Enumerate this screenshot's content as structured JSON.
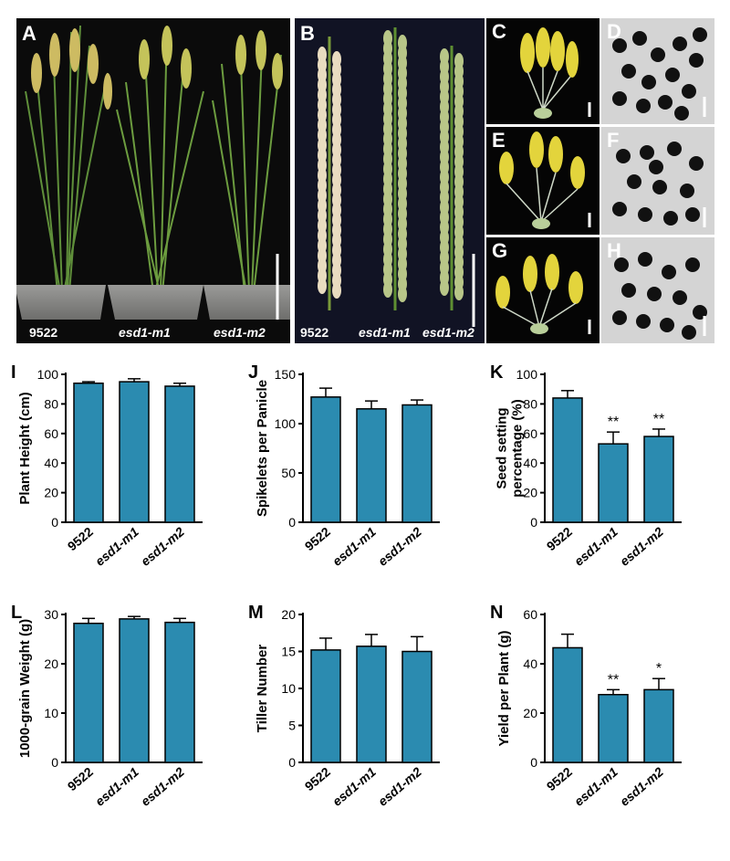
{
  "photo_panels": {
    "A": {
      "label": "A",
      "captions": [
        "9522",
        "esd1-m1",
        "esd1-m2"
      ]
    },
    "B": {
      "label": "B",
      "captions": [
        "9522",
        "esd1-m1",
        "esd1-m2"
      ]
    },
    "C": {
      "label": "C"
    },
    "D": {
      "label": "D"
    },
    "E": {
      "label": "E"
    },
    "F": {
      "label": "F"
    },
    "G": {
      "label": "G"
    },
    "H": {
      "label": "H"
    }
  },
  "colors": {
    "bar": "#2b8bb0",
    "photo_bg": "#0b0b0b",
    "pollen_bg": "#d4d4d4",
    "anther": "#e3d43c"
  },
  "chart_data": [
    {
      "panel": "I",
      "type": "bar",
      "ylabel": "Plant Height (cm)",
      "categories": [
        "9522",
        "esd1-m1",
        "esd1-m2"
      ],
      "values": [
        94,
        95,
        92
      ],
      "errors": [
        1,
        2,
        2
      ],
      "ylim": [
        0,
        100
      ],
      "yticks": [
        0,
        20,
        40,
        60,
        80,
        100
      ],
      "annotations": [
        "",
        "",
        ""
      ]
    },
    {
      "panel": "J",
      "type": "bar",
      "ylabel": "Spikelets per Panicle",
      "categories": [
        "9522",
        "esd1-m1",
        "esd1-m2"
      ],
      "values": [
        127,
        115,
        119
      ],
      "errors": [
        9,
        8,
        5
      ],
      "ylim": [
        0,
        150
      ],
      "yticks": [
        0,
        50,
        100,
        150
      ],
      "annotations": [
        "",
        "",
        ""
      ]
    },
    {
      "panel": "K",
      "type": "bar",
      "ylabel": "Seed setting percentage (%)",
      "ylabel_lines": [
        "Seed setting",
        "percentage (%)"
      ],
      "categories": [
        "9522",
        "esd1-m1",
        "esd1-m2"
      ],
      "values": [
        84,
        53,
        58
      ],
      "errors": [
        5,
        8,
        5
      ],
      "ylim": [
        0,
        100
      ],
      "yticks": [
        0,
        20,
        40,
        60,
        80,
        100
      ],
      "annotations": [
        "",
        "**",
        "**"
      ]
    },
    {
      "panel": "L",
      "type": "bar",
      "ylabel": "1000-grain Weight (g)",
      "categories": [
        "9522",
        "esd1-m1",
        "esd1-m2"
      ],
      "values": [
        28.2,
        29.1,
        28.4
      ],
      "errors": [
        1.0,
        0.5,
        0.8
      ],
      "ylim": [
        0,
        30
      ],
      "yticks": [
        0,
        10,
        20,
        30
      ],
      "annotations": [
        "",
        "",
        ""
      ]
    },
    {
      "panel": "M",
      "type": "bar",
      "ylabel": "Tiller Number",
      "categories": [
        "9522",
        "esd1-m1",
        "esd1-m2"
      ],
      "values": [
        15.2,
        15.7,
        15.0
      ],
      "errors": [
        1.6,
        1.6,
        2.0
      ],
      "ylim": [
        0,
        20
      ],
      "yticks": [
        0,
        5,
        10,
        15,
        20
      ],
      "annotations": [
        "",
        "",
        ""
      ]
    },
    {
      "panel": "N",
      "type": "bar",
      "ylabel": "Yield per Plant (g)",
      "categories": [
        "9522",
        "esd1-m1",
        "esd1-m2"
      ],
      "values": [
        46.5,
        27.5,
        29.5
      ],
      "errors": [
        5.5,
        2.0,
        4.5
      ],
      "ylim": [
        0,
        60
      ],
      "yticks": [
        0,
        20,
        40,
        60
      ],
      "annotations": [
        "",
        "**",
        "*"
      ]
    }
  ]
}
